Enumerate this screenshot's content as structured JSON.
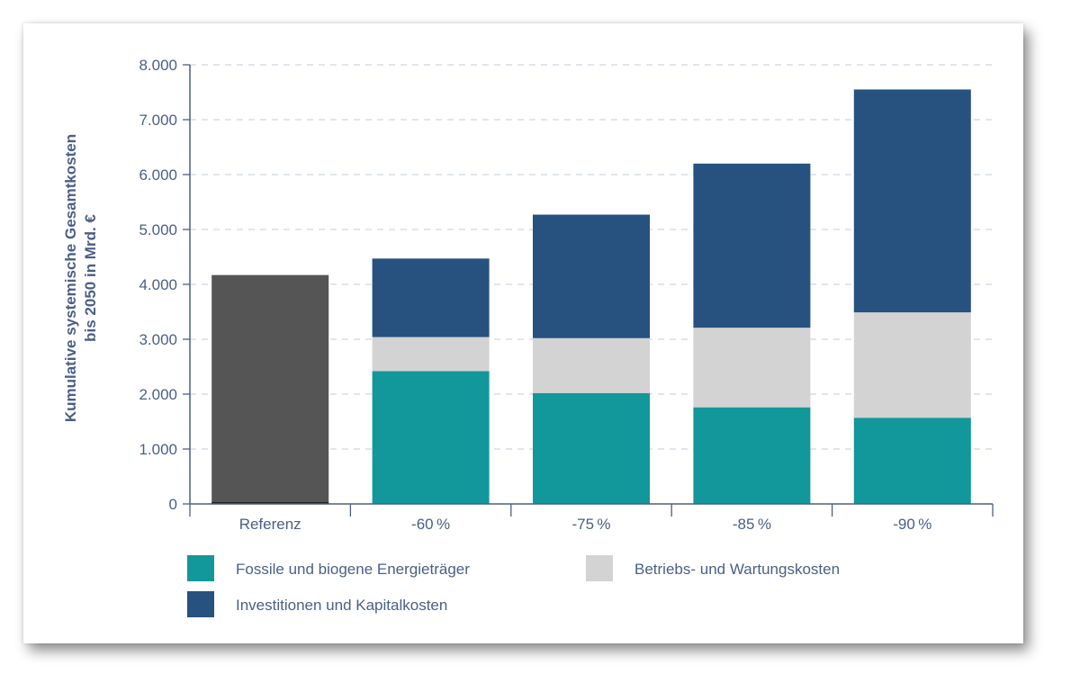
{
  "chart_data": {
    "type": "bar",
    "stacked": true,
    "ylabel_line1": "Kumulative systemische Gesamtkosten",
    "ylabel_line2": "bis 2050 in Mrd. €",
    "ylim": [
      0,
      8000
    ],
    "yticks": [
      0,
      1000,
      2000,
      3000,
      4000,
      5000,
      6000,
      7000,
      8000
    ],
    "ytick_labels": [
      "0",
      "1.000",
      "2.000",
      "3.000",
      "4.000",
      "5.000",
      "6.000",
      "7.000",
      "8.000"
    ],
    "grid": true,
    "categories": [
      "Referenz",
      "-60 %",
      "-75 %",
      "-85 %",
      "-90 %"
    ],
    "reference_total": 4170,
    "reference_color": "#555555",
    "series": [
      {
        "name": "Fossile und biogene Energieträger",
        "color": "#12979b",
        "values": [
          null,
          2420,
          2020,
          1760,
          1570
        ]
      },
      {
        "name": "Betriebs- und Wartungskosten",
        "color": "#d3d3d3",
        "values": [
          null,
          620,
          1000,
          1450,
          1920
        ]
      },
      {
        "name": "Investitionen und Kapitalkosten",
        "color": "#27517f",
        "values": [
          null,
          1430,
          2250,
          2990,
          4060
        ]
      }
    ],
    "legend_position": "bottom"
  }
}
